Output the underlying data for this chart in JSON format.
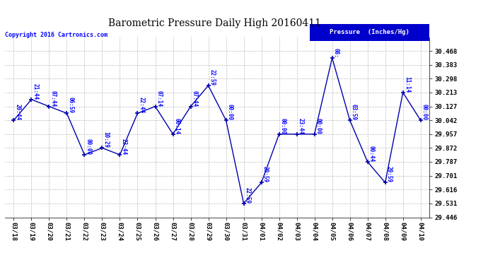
{
  "title": "Barometric Pressure Daily High 20160411",
  "copyright": "Copyright 2016 Cartronics.com",
  "legend_label": "Pressure  (Inches/Hg)",
  "dates": [
    "03/18",
    "03/19",
    "03/20",
    "03/21",
    "03/22",
    "03/23",
    "03/24",
    "03/25",
    "03/26",
    "03/27",
    "03/28",
    "03/29",
    "03/30",
    "03/31",
    "04/01",
    "04/02",
    "04/03",
    "04/04",
    "04/05",
    "04/06",
    "04/07",
    "04/08",
    "04/09",
    "04/10"
  ],
  "values": [
    30.042,
    30.17,
    30.127,
    30.085,
    29.83,
    29.872,
    29.83,
    30.085,
    30.127,
    29.957,
    30.127,
    30.255,
    30.042,
    29.531,
    29.659,
    29.957,
    29.957,
    29.957,
    30.425,
    30.042,
    29.787,
    29.659,
    30.213,
    30.042
  ],
  "labels": [
    "20:44",
    "21:44",
    "07:44",
    "06:59",
    "00:00",
    "10:29",
    "23:44",
    "22:44",
    "07:14",
    "00:14",
    "07:44",
    "22:59",
    "00:00",
    "22:59",
    "20:59",
    "00:00",
    "23:44",
    "00:00",
    "08:",
    "03:59",
    "00:44",
    "20:59",
    "11:14",
    "00:00"
  ],
  "ylim_min": 29.446,
  "ylim_max": 30.553,
  "yticks": [
    29.446,
    29.531,
    29.616,
    29.701,
    29.787,
    29.872,
    29.957,
    30.042,
    30.127,
    30.213,
    30.298,
    30.383,
    30.468
  ],
  "line_color": "#0000AA",
  "marker_color": "#0000AA",
  "bg_color": "#FFFFFF",
  "grid_color": "#BBBBBB",
  "label_color": "#0000FF",
  "title_color": "#000000",
  "legend_bg": "#0000CC",
  "legend_text_color": "#FFFFFF",
  "copyright_color": "#0000FF"
}
